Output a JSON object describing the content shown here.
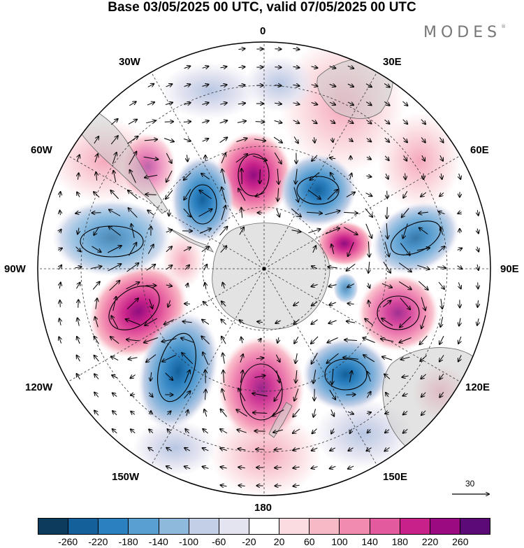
{
  "title": "Base 03/05/2025 00 UTC, valid 07/05/2025 00 UTC",
  "brand": "MODES",
  "brand_mark": "®",
  "longitude_labels": {
    "lon_0": "0",
    "lon_30e": "30E",
    "lon_60e": "60E",
    "lon_90e": "90E",
    "lon_120e": "120E",
    "lon_150e": "150E",
    "lon_180": "180",
    "lon_150w": "150W",
    "lon_120w": "120W",
    "lon_90w": "90W",
    "lon_60w": "60W",
    "lon_30w": "30W"
  },
  "reference_vector": "30",
  "colorbar": {
    "colors": [
      "#0d3b5e",
      "#14609a",
      "#2b80bf",
      "#5a9fd2",
      "#8fb8dd",
      "#c2cfe6",
      "#e4e4f1",
      "#ffffff",
      "#fbdde1",
      "#f8b9c6",
      "#f28bb0",
      "#e45a9e",
      "#c8228a",
      "#9c0a82",
      "#5c0a76"
    ],
    "labels": [
      "-260",
      "-220",
      "-180",
      "-140",
      "-100",
      "-60",
      "-20",
      "20",
      "60",
      "100",
      "140",
      "180",
      "220",
      "260"
    ]
  },
  "colors": {
    "land": "#cccccc",
    "grid": "#333333",
    "frame": "#000000"
  }
}
